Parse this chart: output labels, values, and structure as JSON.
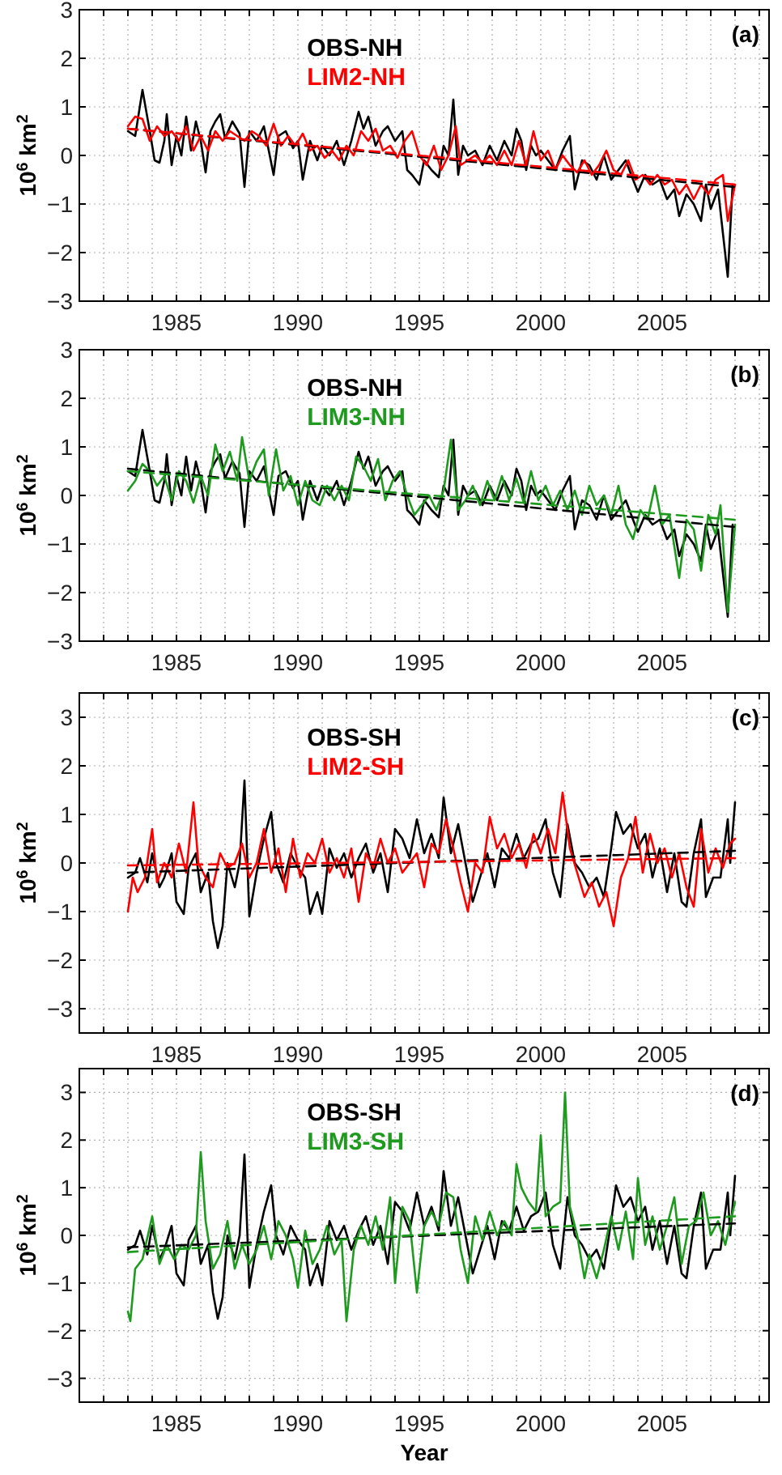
{
  "chart_data": [
    {
      "type": "line",
      "ylabel": "10$^{6}$ km$^{2}$",
      "annotations": [
        "(a)"
      ],
      "xlim": [
        1981,
        2009.4
      ],
      "ylim": [
        -3,
        3
      ],
      "yticks": [
        -3,
        -2,
        -1,
        0,
        1,
        2,
        3
      ],
      "grid": true,
      "legend": "top",
      "xticks": [
        {
          "value": 1981,
          "label": null
        },
        {
          "value": 1982,
          "label": null
        },
        {
          "value": 1983,
          "label": null
        },
        {
          "value": 1984,
          "label": null
        },
        1985,
        {
          "value": 1986,
          "label": null
        },
        {
          "value": 1987,
          "label": null
        },
        {
          "value": 1988,
          "label": null
        },
        {
          "value": 1989,
          "label": null
        },
        1990,
        {
          "value": 1991,
          "label": null
        },
        {
          "value": 1992,
          "label": null
        },
        {
          "value": 1993,
          "label": null
        },
        {
          "value": 1994,
          "label": null
        },
        1995,
        {
          "value": 1996,
          "label": null
        },
        {
          "value": 1997,
          "label": null
        },
        {
          "value": 1998,
          "label": null
        },
        {
          "value": 1999,
          "label": null
        },
        2000,
        {
          "value": 2001,
          "label": null
        },
        {
          "value": 2002,
          "label": null
        },
        {
          "value": 2003,
          "label": null
        },
        {
          "value": 2004,
          "label": null
        },
        2005,
        {
          "value": 2006,
          "label": null
        },
        {
          "value": 2007,
          "label": null
        },
        {
          "value": 2008,
          "label": null
        },
        {
          "value": 2009,
          "label": null
        }
      ],
      "series": [
        {
          "name": "OBS-NH",
          "color": "#000000",
          "x": [
            1983.0,
            1983.3,
            1983.6,
            1983.9,
            1984.1,
            1984.3,
            1984.5,
            1984.6,
            1984.8,
            1985.0,
            1985.2,
            1985.4,
            1985.6,
            1985.8,
            1986.0,
            1986.2,
            1986.4,
            1986.6,
            1986.8,
            1987.0,
            1987.3,
            1987.6,
            1987.8,
            1988.0,
            1988.3,
            1988.6,
            1988.8,
            1989.0,
            1989.2,
            1989.5,
            1989.8,
            1990.0,
            1990.2,
            1990.5,
            1990.8,
            1991.0,
            1991.3,
            1991.6,
            1991.9,
            1992.2,
            1992.5,
            1992.7,
            1992.9,
            1993.2,
            1993.5,
            1993.7,
            1994.0,
            1994.3,
            1994.5,
            1994.7,
            1995.0,
            1995.2,
            1995.5,
            1995.8,
            1996.0,
            1996.2,
            1996.4,
            1996.6,
            1996.8,
            1997.0,
            1997.3,
            1997.6,
            1997.9,
            1998.2,
            1998.5,
            1998.8,
            1999.0,
            1999.2,
            1999.4,
            1999.6,
            1999.8,
            2000.0,
            2000.3,
            2000.6,
            2000.9,
            2001.2,
            2001.4,
            2001.7,
            2002.0,
            2002.3,
            2002.6,
            2002.9,
            2003.2,
            2003.5,
            2003.8,
            2004.0,
            2004.3,
            2004.6,
            2004.9,
            2005.2,
            2005.5,
            2005.7,
            2006.0,
            2006.3,
            2006.6,
            2006.8,
            2007.0,
            2007.3,
            2007.5,
            2007.7,
            2007.9
          ],
          "values": [
            0.5,
            0.4,
            1.35,
            0.5,
            -0.1,
            -0.15,
            0.3,
            0.85,
            -0.2,
            0.4,
            0.0,
            0.8,
            0.1,
            0.7,
            0.3,
            -0.35,
            0.5,
            0.7,
            0.85,
            0.35,
            0.7,
            0.45,
            -0.65,
            0.5,
            0.3,
            0.6,
            0.1,
            -0.4,
            0.4,
            0.5,
            0.15,
            0.3,
            -0.5,
            0.3,
            -0.1,
            0.2,
            0.0,
            0.3,
            -0.2,
            0.3,
            0.9,
            0.55,
            0.8,
            0.2,
            0.5,
            0.6,
            0.3,
            0.5,
            -0.3,
            -0.4,
            -0.6,
            -0.1,
            -0.3,
            -0.45,
            0.2,
            0.0,
            1.15,
            -0.4,
            0.2,
            0.0,
            0.1,
            -0.2,
            0.2,
            -0.1,
            0.3,
            0.0,
            0.55,
            0.3,
            -0.3,
            0.2,
            0.0,
            0.1,
            -0.1,
            -0.3,
            0.1,
            0.4,
            -0.7,
            -0.1,
            -0.2,
            -0.5,
            0.0,
            -0.5,
            -0.3,
            -0.1,
            -0.5,
            -0.75,
            -0.4,
            -0.6,
            -0.5,
            -0.9,
            -0.7,
            -1.25,
            -0.8,
            -1.0,
            -1.35,
            -0.6,
            -1.1,
            -0.7,
            -1.6,
            -2.5,
            -0.6
          ]
        },
        {
          "name": "LIM2-NH",
          "color": "#ff0000",
          "x": [
            1983.0,
            1983.3,
            1983.6,
            1983.9,
            1984.2,
            1984.5,
            1984.8,
            1985.1,
            1985.4,
            1985.7,
            1986.0,
            1986.3,
            1986.6,
            1986.9,
            1987.2,
            1987.5,
            1987.8,
            1988.1,
            1988.4,
            1988.7,
            1989.0,
            1989.3,
            1989.6,
            1989.9,
            1990.2,
            1990.5,
            1990.8,
            1991.1,
            1991.4,
            1991.7,
            1992.0,
            1992.3,
            1992.6,
            1992.9,
            1993.2,
            1993.5,
            1993.8,
            1994.1,
            1994.4,
            1994.7,
            1995.0,
            1995.3,
            1995.6,
            1995.9,
            1996.2,
            1996.5,
            1996.7,
            1997.0,
            1997.3,
            1997.6,
            1997.9,
            1998.2,
            1998.5,
            1998.8,
            1999.1,
            1999.4,
            1999.7,
            2000.0,
            2000.3,
            2000.6,
            2000.9,
            2001.2,
            2001.5,
            2001.8,
            2002.1,
            2002.4,
            2002.7,
            2003.0,
            2003.3,
            2003.6,
            2003.9,
            2004.2,
            2004.5,
            2004.8,
            2005.1,
            2005.4,
            2005.7,
            2006.0,
            2006.3,
            2006.6,
            2006.9,
            2007.2,
            2007.5,
            2007.7,
            2008.0
          ],
          "values": [
            0.6,
            0.8,
            0.75,
            0.3,
            0.6,
            0.4,
            0.5,
            0.3,
            0.6,
            0.1,
            0.4,
            0.1,
            0.5,
            0.3,
            0.5,
            0.4,
            0.3,
            0.5,
            0.4,
            0.2,
            0.65,
            0.2,
            0.4,
            0.2,
            0.45,
            0.1,
            0.2,
            -0.05,
            0.1,
            -0.1,
            0.2,
            0.0,
            0.5,
            0.3,
            0.55,
            0.1,
            0.2,
            -0.05,
            0.3,
            0.5,
            0.0,
            -0.2,
            0.2,
            -0.3,
            0.0,
            0.6,
            -0.2,
            -0.1,
            0.0,
            -0.15,
            0.0,
            -0.2,
            0.1,
            -0.2,
            0.3,
            -0.2,
            0.5,
            -0.1,
            0.1,
            -0.3,
            0.0,
            -0.2,
            -0.35,
            -0.1,
            -0.4,
            -0.2,
            0.1,
            -0.3,
            -0.4,
            -0.1,
            -0.5,
            -0.4,
            -0.6,
            -0.4,
            -0.6,
            -0.5,
            -0.8,
            -0.6,
            -0.9,
            -0.6,
            -0.8,
            -0.5,
            -0.4,
            -1.35,
            -0.6
          ]
        },
        {
          "type": "line",
          "color": "#000000",
          "line_style": "dashed",
          "x": [
            1983,
            2008
          ],
          "values": [
            0.55,
            -0.65
          ]
        },
        {
          "type": "line",
          "color": "#ff0000",
          "line_style": "dashed",
          "x": [
            1983,
            2008
          ],
          "values": [
            0.55,
            -0.6
          ]
        }
      ]
    },
    {
      "type": "line",
      "ylabel": "10$^{6}$ km$^{2}$",
      "annotations": [
        "(b)"
      ],
      "xlim": [
        1981,
        2009.4
      ],
      "ylim": [
        -3,
        3
      ],
      "yticks": [
        -3,
        -2,
        -1,
        0,
        1,
        2,
        3
      ],
      "grid": true,
      "legend": "top",
      "xticks": [
        {
          "value": 1981,
          "label": null
        },
        {
          "value": 1982,
          "label": null
        },
        {
          "value": 1983,
          "label": null
        },
        {
          "value": 1984,
          "label": null
        },
        1985,
        {
          "value": 1986,
          "label": null
        },
        {
          "value": 1987,
          "label": null
        },
        {
          "value": 1988,
          "label": null
        },
        {
          "value": 1989,
          "label": null
        },
        1990,
        {
          "value": 1991,
          "label": null
        },
        {
          "value": 1992,
          "label": null
        },
        {
          "value": 1993,
          "label": null
        },
        {
          "value": 1994,
          "label": null
        },
        1995,
        {
          "value": 1996,
          "label": null
        },
        {
          "value": 1997,
          "label": null
        },
        {
          "value": 1998,
          "label": null
        },
        {
          "value": 1999,
          "label": null
        },
        2000,
        {
          "value": 2001,
          "label": null
        },
        {
          "value": 2002,
          "label": null
        },
        {
          "value": 2003,
          "label": null
        },
        {
          "value": 2004,
          "label": null
        },
        2005,
        {
          "value": 2006,
          "label": null
        },
        {
          "value": 2007,
          "label": null
        },
        {
          "value": 2008,
          "label": null
        },
        {
          "value": 2009,
          "label": null
        }
      ],
      "series": [
        {
          "name": "OBS-NH",
          "color": "#000000",
          "x": [
            1983.0,
            1983.3,
            1983.6,
            1983.9,
            1984.1,
            1984.3,
            1984.5,
            1984.6,
            1984.8,
            1985.0,
            1985.2,
            1985.4,
            1985.6,
            1985.8,
            1986.0,
            1986.2,
            1986.4,
            1986.6,
            1986.8,
            1987.0,
            1987.3,
            1987.6,
            1987.8,
            1988.0,
            1988.3,
            1988.6,
            1988.8,
            1989.0,
            1989.2,
            1989.5,
            1989.8,
            1990.0,
            1990.2,
            1990.5,
            1990.8,
            1991.0,
            1991.3,
            1991.6,
            1991.9,
            1992.2,
            1992.5,
            1992.7,
            1992.9,
            1993.2,
            1993.5,
            1993.7,
            1994.0,
            1994.3,
            1994.5,
            1994.7,
            1995.0,
            1995.2,
            1995.5,
            1995.8,
            1996.0,
            1996.2,
            1996.4,
            1996.6,
            1996.8,
            1997.0,
            1997.3,
            1997.6,
            1997.9,
            1998.2,
            1998.5,
            1998.8,
            1999.0,
            1999.2,
            1999.4,
            1999.6,
            1999.8,
            2000.0,
            2000.3,
            2000.6,
            2000.9,
            2001.2,
            2001.4,
            2001.7,
            2002.0,
            2002.3,
            2002.6,
            2002.9,
            2003.2,
            2003.5,
            2003.8,
            2004.0,
            2004.3,
            2004.6,
            2004.9,
            2005.2,
            2005.5,
            2005.7,
            2006.0,
            2006.3,
            2006.6,
            2006.8,
            2007.0,
            2007.3,
            2007.5,
            2007.7,
            2007.9
          ],
          "values": [
            0.5,
            0.4,
            1.35,
            0.5,
            -0.1,
            -0.15,
            0.3,
            0.85,
            -0.2,
            0.4,
            0.0,
            0.8,
            0.1,
            0.7,
            0.3,
            -0.35,
            0.5,
            0.7,
            0.85,
            0.35,
            0.7,
            0.45,
            -0.65,
            0.5,
            0.3,
            0.6,
            0.1,
            -0.4,
            0.4,
            0.5,
            0.15,
            0.3,
            -0.5,
            0.3,
            -0.1,
            0.2,
            0.0,
            0.3,
            -0.2,
            0.3,
            0.9,
            0.55,
            0.8,
            0.2,
            0.5,
            0.6,
            0.3,
            0.5,
            -0.3,
            -0.4,
            -0.6,
            -0.1,
            -0.3,
            -0.45,
            0.2,
            0.0,
            1.15,
            -0.4,
            0.2,
            0.0,
            0.1,
            -0.2,
            0.2,
            -0.1,
            0.3,
            0.0,
            0.55,
            0.3,
            -0.3,
            0.2,
            0.0,
            0.1,
            -0.1,
            -0.3,
            0.1,
            0.4,
            -0.7,
            -0.1,
            -0.2,
            -0.5,
            0.0,
            -0.5,
            -0.3,
            -0.1,
            -0.5,
            -0.75,
            -0.4,
            -0.6,
            -0.5,
            -0.9,
            -0.7,
            -1.25,
            -0.8,
            -1.0,
            -1.35,
            -0.6,
            -1.1,
            -0.7,
            -1.6,
            -2.5,
            -0.6
          ]
        },
        {
          "name": "LIM3-NH",
          "color": "#1e9b1e",
          "x": [
            1983.0,
            1983.3,
            1983.6,
            1983.9,
            1984.2,
            1984.5,
            1984.8,
            1985.1,
            1985.4,
            1985.7,
            1986.0,
            1986.3,
            1986.6,
            1986.9,
            1987.2,
            1987.5,
            1987.7,
            1988.0,
            1988.3,
            1988.6,
            1988.8,
            1989.1,
            1989.4,
            1989.7,
            1990.0,
            1990.3,
            1990.6,
            1990.9,
            1991.2,
            1991.5,
            1991.8,
            1992.1,
            1992.4,
            1992.7,
            1993.0,
            1993.3,
            1993.6,
            1993.9,
            1994.2,
            1994.5,
            1994.8,
            1995.1,
            1995.4,
            1995.7,
            1996.0,
            1996.3,
            1996.6,
            1996.9,
            1997.2,
            1997.5,
            1997.8,
            1998.1,
            1998.4,
            1998.7,
            1999.0,
            1999.3,
            1999.6,
            1999.9,
            2000.2,
            2000.5,
            2000.8,
            2001.1,
            2001.4,
            2001.7,
            2002.0,
            2002.3,
            2002.6,
            2002.9,
            2003.2,
            2003.5,
            2003.8,
            2004.1,
            2004.4,
            2004.7,
            2005.0,
            2005.3,
            2005.7,
            2006.0,
            2006.3,
            2006.6,
            2006.9,
            2007.2,
            2007.4,
            2007.7,
            2008.0
          ],
          "values": [
            0.1,
            0.3,
            0.65,
            0.5,
            0.2,
            0.4,
            -0.1,
            0.5,
            0.3,
            -0.15,
            0.4,
            0.0,
            1.05,
            0.5,
            0.9,
            0.3,
            1.2,
            0.3,
            0.7,
            0.95,
            0.0,
            0.95,
            0.1,
            0.4,
            -0.2,
            0.3,
            -0.1,
            -0.2,
            0.2,
            -0.1,
            0.2,
            -0.1,
            0.8,
            0.6,
            0.3,
            0.75,
            -0.1,
            0.3,
            0.5,
            0.0,
            -0.4,
            -0.2,
            0.0,
            -0.3,
            0.1,
            1.15,
            -0.3,
            -0.1,
            0.2,
            -0.2,
            0.3,
            -0.1,
            0.4,
            -0.1,
            0.35,
            -0.15,
            0.5,
            -0.1,
            0.2,
            -0.2,
            0.1,
            -0.3,
            0.1,
            -0.4,
            0.2,
            -0.2,
            0.0,
            -0.4,
            0.2,
            -0.6,
            -0.9,
            -0.3,
            -0.5,
            0.2,
            -0.6,
            -0.4,
            -1.7,
            -0.5,
            -0.7,
            -1.55,
            -0.4,
            -0.8,
            -0.2,
            -2.4,
            -0.6
          ]
        },
        {
          "type": "line",
          "color": "#000000",
          "line_style": "dashed",
          "x": [
            1983,
            2008
          ],
          "values": [
            0.55,
            -0.65
          ]
        },
        {
          "type": "line",
          "color": "#1e9b1e",
          "line_style": "dashed",
          "x": [
            1983,
            2008
          ],
          "values": [
            0.5,
            -0.5
          ]
        }
      ]
    },
    {
      "type": "line",
      "ylabel": "10$^{6}$ km$^{2}$",
      "annotations": [
        "(c)"
      ],
      "xlim": [
        1981,
        2009.4
      ],
      "ylim": [
        -3.5,
        3.5
      ],
      "yticks": [
        -3,
        -2,
        -1,
        0,
        1,
        2,
        3
      ],
      "grid": true,
      "legend": "top",
      "xticks": [
        {
          "value": 1981,
          "label": null
        },
        {
          "value": 1982,
          "label": null
        },
        {
          "value": 1983,
          "label": null
        },
        {
          "value": 1984,
          "label": null
        },
        1985,
        {
          "value": 1986,
          "label": null
        },
        {
          "value": 1987,
          "label": null
        },
        {
          "value": 1988,
          "label": null
        },
        {
          "value": 1989,
          "label": null
        },
        1990,
        {
          "value": 1991,
          "label": null
        },
        {
          "value": 1992,
          "label": null
        },
        {
          "value": 1993,
          "label": null
        },
        {
          "value": 1994,
          "label": null
        },
        1995,
        {
          "value": 1996,
          "label": null
        },
        {
          "value": 1997,
          "label": null
        },
        {
          "value": 1998,
          "label": null
        },
        {
          "value": 1999,
          "label": null
        },
        2000,
        {
          "value": 2001,
          "label": null
        },
        {
          "value": 2002,
          "label": null
        },
        {
          "value": 2003,
          "label": null
        },
        {
          "value": 2004,
          "label": null
        },
        2005,
        {
          "value": 2006,
          "label": null
        },
        {
          "value": 2007,
          "label": null
        },
        {
          "value": 2008,
          "label": null
        },
        {
          "value": 2009,
          "label": null
        }
      ],
      "series": [
        {
          "name": "OBS-SH",
          "color": "#000000",
          "x": [
            1983.0,
            1983.3,
            1983.5,
            1983.8,
            1984.0,
            1984.3,
            1984.5,
            1984.8,
            1985.0,
            1985.3,
            1985.5,
            1985.8,
            1986.0,
            1986.3,
            1986.5,
            1986.7,
            1986.9,
            1987.1,
            1987.4,
            1987.6,
            1987.8,
            1988.0,
            1988.3,
            1988.6,
            1988.9,
            1989.1,
            1989.4,
            1989.7,
            1990.0,
            1990.3,
            1990.5,
            1990.8,
            1991.0,
            1991.3,
            1991.6,
            1991.9,
            1992.2,
            1992.5,
            1992.8,
            1993.1,
            1993.4,
            1993.7,
            1994.0,
            1994.3,
            1994.6,
            1994.9,
            1995.2,
            1995.5,
            1995.8,
            1996.0,
            1996.3,
            1996.6,
            1996.9,
            1997.2,
            1997.5,
            1997.8,
            1998.1,
            1998.4,
            1998.7,
            1999.0,
            1999.3,
            1999.6,
            1999.9,
            2000.2,
            2000.5,
            2000.8,
            2001.1,
            2001.4,
            2001.7,
            2002.0,
            2002.3,
            2002.6,
            2002.9,
            2003.1,
            2003.4,
            2003.7,
            2004.0,
            2004.3,
            2004.6,
            2004.9,
            2005.2,
            2005.5,
            2005.8,
            2006.0,
            2006.3,
            2006.6,
            2006.8,
            2007.1,
            2007.4,
            2007.7,
            2007.8,
            2008.0
          ],
          "values": [
            -0.3,
            -0.2,
            0.1,
            -0.4,
            0.2,
            -0.5,
            -0.3,
            0.2,
            -0.8,
            -1.05,
            -0.1,
            0.2,
            -0.6,
            -0.2,
            -1.2,
            -1.75,
            -1.3,
            0.0,
            -0.5,
            0.0,
            1.7,
            -1.1,
            -0.2,
            0.5,
            1.05,
            0.0,
            -0.4,
            0.2,
            -0.1,
            -0.3,
            -1.05,
            -0.6,
            -1.05,
            0.3,
            -0.1,
            0.2,
            -0.3,
            0.1,
            0.4,
            -0.2,
            0.2,
            -0.6,
            0.7,
            0.5,
            0.1,
            0.9,
            0.2,
            0.6,
            0.1,
            1.35,
            0.2,
            0.8,
            0.0,
            -0.8,
            -0.3,
            0.2,
            -0.5,
            0.3,
            0.1,
            0.6,
            0.1,
            0.4,
            0.5,
            0.9,
            -0.2,
            -0.7,
            0.8,
            0.0,
            -0.2,
            -0.5,
            -0.3,
            -0.7,
            0.3,
            1.05,
            0.6,
            0.8,
            0.3,
            0.6,
            -0.3,
            0.3,
            -0.6,
            0.2,
            -0.8,
            -0.9,
            0.2,
            0.9,
            -0.7,
            -0.3,
            -0.3,
            0.9,
            0.0,
            1.25
          ]
        },
        {
          "name": "LIM2-SH",
          "color": "#ff0000",
          "x": [
            1983.0,
            1983.2,
            1983.4,
            1983.7,
            1984.0,
            1984.2,
            1984.5,
            1984.8,
            1985.1,
            1985.4,
            1985.7,
            1985.9,
            1986.2,
            1986.5,
            1986.8,
            1987.1,
            1987.4,
            1987.7,
            1988.0,
            1988.3,
            1988.6,
            1988.9,
            1989.2,
            1989.5,
            1989.8,
            1990.1,
            1990.4,
            1990.7,
            1991.0,
            1991.3,
            1991.6,
            1991.9,
            1992.2,
            1992.5,
            1992.8,
            1993.1,
            1993.4,
            1993.7,
            1994.0,
            1994.3,
            1994.6,
            1994.9,
            1995.2,
            1995.5,
            1995.8,
            1996.1,
            1996.4,
            1996.7,
            1997.0,
            1997.3,
            1997.6,
            1997.9,
            1998.2,
            1998.5,
            1998.8,
            1999.1,
            1999.4,
            1999.7,
            2000.0,
            2000.3,
            2000.6,
            2000.9,
            2001.2,
            2001.5,
            2001.8,
            2002.1,
            2002.4,
            2002.7,
            2003.0,
            2003.3,
            2003.6,
            2003.9,
            2004.2,
            2004.5,
            2004.8,
            2005.1,
            2005.4,
            2005.7,
            2006.0,
            2006.3,
            2006.6,
            2006.9,
            2007.2,
            2007.5,
            2007.8,
            2008.0
          ],
          "values": [
            -1.0,
            -0.3,
            -0.6,
            -0.3,
            0.7,
            -0.4,
            0.0,
            -0.3,
            0.4,
            -0.2,
            1.25,
            0.0,
            -0.3,
            -0.5,
            0.2,
            -0.1,
            0.0,
            0.4,
            -0.3,
            0.0,
            0.7,
            -0.2,
            0.3,
            -0.6,
            0.5,
            -0.3,
            0.2,
            0.0,
            0.5,
            -0.2,
            0.1,
            -0.3,
            0.3,
            -0.8,
            0.2,
            -0.1,
            0.5,
            0.0,
            0.3,
            -0.2,
            0.0,
            0.2,
            -0.5,
            0.4,
            0.2,
            0.9,
            0.3,
            -0.4,
            -1.0,
            0.0,
            -0.2,
            0.95,
            0.3,
            0.6,
            0.1,
            0.4,
            -0.1,
            0.6,
            0.2,
            0.7,
            0.2,
            1.45,
            0.3,
            -0.2,
            -0.7,
            -0.4,
            -0.9,
            -0.6,
            -1.3,
            -0.3,
            0.1,
            0.95,
            -0.2,
            0.6,
            0.0,
            0.3,
            -0.3,
            0.2,
            -0.5,
            -0.9,
            0.7,
            -0.2,
            0.3,
            -0.1,
            0.4,
            0.5
          ]
        },
        {
          "type": "line",
          "color": "#000000",
          "line_style": "dashed",
          "x": [
            1983,
            2008
          ],
          "values": [
            -0.2,
            0.25
          ]
        },
        {
          "type": "line",
          "color": "#ff0000",
          "line_style": "dashed",
          "x": [
            1983,
            2008
          ],
          "values": [
            -0.05,
            0.1
          ]
        }
      ]
    },
    {
      "type": "line",
      "xlabel": "Year",
      "ylabel": "10$^{6}$ km$^{2}$",
      "annotations": [
        "(d)"
      ],
      "xlim": [
        1981,
        2009.4
      ],
      "ylim": [
        -3.5,
        3.5
      ],
      "yticks": [
        -3,
        -2,
        -1,
        0,
        1,
        2,
        3
      ],
      "grid": true,
      "legend": "top",
      "xticks": [
        {
          "value": 1981,
          "label": null
        },
        {
          "value": 1982,
          "label": null
        },
        {
          "value": 1983,
          "label": null
        },
        {
          "value": 1984,
          "label": null
        },
        1985,
        {
          "value": 1986,
          "label": null
        },
        {
          "value": 1987,
          "label": null
        },
        {
          "value": 1988,
          "label": null
        },
        {
          "value": 1989,
          "label": null
        },
        1990,
        {
          "value": 1991,
          "label": null
        },
        {
          "value": 1992,
          "label": null
        },
        {
          "value": 1993,
          "label": null
        },
        {
          "value": 1994,
          "label": null
        },
        1995,
        {
          "value": 1996,
          "label": null
        },
        {
          "value": 1997,
          "label": null
        },
        {
          "value": 1998,
          "label": null
        },
        {
          "value": 1999,
          "label": null
        },
        2000,
        {
          "value": 2001,
          "label": null
        },
        {
          "value": 2002,
          "label": null
        },
        {
          "value": 2003,
          "label": null
        },
        {
          "value": 2004,
          "label": null
        },
        2005,
        {
          "value": 2006,
          "label": null
        },
        {
          "value": 2007,
          "label": null
        },
        {
          "value": 2008,
          "label": null
        },
        {
          "value": 2009,
          "label": null
        }
      ],
      "series": [
        {
          "name": "OBS-SH",
          "color": "#000000",
          "x": [
            1983.0,
            1983.3,
            1983.5,
            1983.8,
            1984.0,
            1984.3,
            1984.5,
            1984.8,
            1985.0,
            1985.3,
            1985.5,
            1985.8,
            1986.0,
            1986.3,
            1986.5,
            1986.7,
            1986.9,
            1987.1,
            1987.4,
            1987.6,
            1987.8,
            1988.0,
            1988.3,
            1988.6,
            1988.9,
            1989.1,
            1989.4,
            1989.7,
            1990.0,
            1990.3,
            1990.5,
            1990.8,
            1991.0,
            1991.3,
            1991.6,
            1991.9,
            1992.2,
            1992.5,
            1992.8,
            1993.1,
            1993.4,
            1993.7,
            1994.0,
            1994.3,
            1994.6,
            1994.9,
            1995.2,
            1995.5,
            1995.8,
            1996.0,
            1996.3,
            1996.6,
            1996.9,
            1997.2,
            1997.5,
            1997.8,
            1998.1,
            1998.4,
            1998.7,
            1999.0,
            1999.3,
            1999.6,
            1999.9,
            2000.2,
            2000.5,
            2000.8,
            2001.1,
            2001.4,
            2001.7,
            2002.0,
            2002.3,
            2002.6,
            2002.9,
            2003.1,
            2003.4,
            2003.7,
            2004.0,
            2004.3,
            2004.6,
            2004.9,
            2005.2,
            2005.5,
            2005.8,
            2006.0,
            2006.3,
            2006.6,
            2006.8,
            2007.1,
            2007.4,
            2007.7,
            2007.8,
            2008.0
          ],
          "values": [
            -0.3,
            -0.2,
            0.1,
            -0.4,
            0.2,
            -0.5,
            -0.3,
            0.2,
            -0.8,
            -1.05,
            -0.1,
            0.2,
            -0.6,
            -0.2,
            -1.2,
            -1.75,
            -1.3,
            0.0,
            -0.5,
            0.0,
            1.7,
            -1.1,
            -0.2,
            0.5,
            1.05,
            0.0,
            -0.4,
            0.2,
            -0.1,
            -0.3,
            -1.05,
            -0.6,
            -1.05,
            0.3,
            -0.1,
            0.2,
            -0.3,
            0.1,
            0.4,
            -0.2,
            0.2,
            -0.6,
            0.7,
            0.5,
            0.1,
            0.9,
            0.2,
            0.6,
            0.1,
            1.35,
            0.2,
            0.8,
            0.0,
            -0.8,
            -0.3,
            0.2,
            -0.5,
            0.3,
            0.1,
            0.6,
            0.1,
            0.4,
            0.5,
            0.9,
            -0.2,
            -0.7,
            0.8,
            0.0,
            -0.2,
            -0.5,
            -0.3,
            -0.7,
            0.3,
            1.05,
            0.6,
            0.8,
            0.3,
            0.6,
            -0.3,
            0.3,
            -0.6,
            0.2,
            -0.8,
            -0.9,
            0.2,
            0.9,
            -0.7,
            -0.3,
            -0.3,
            0.9,
            0.0,
            1.25
          ]
        },
        {
          "name": "LIM3-SH",
          "color": "#1e9b1e",
          "x": [
            1983.0,
            1983.1,
            1983.3,
            1983.6,
            1984.0,
            1984.3,
            1984.6,
            1984.9,
            1985.2,
            1985.5,
            1985.8,
            1986.0,
            1986.2,
            1986.5,
            1986.8,
            1987.1,
            1987.4,
            1987.7,
            1988.0,
            1988.3,
            1988.6,
            1988.9,
            1989.2,
            1989.5,
            1989.8,
            1990.0,
            1990.3,
            1990.6,
            1990.9,
            1991.2,
            1991.5,
            1991.8,
            1992.0,
            1992.3,
            1992.6,
            1992.9,
            1993.2,
            1993.5,
            1993.8,
            1994.0,
            1994.3,
            1994.6,
            1994.9,
            1995.2,
            1995.5,
            1995.8,
            1996.1,
            1996.4,
            1996.7,
            1997.0,
            1997.3,
            1997.6,
            1997.9,
            1998.2,
            1998.5,
            1998.8,
            1999.0,
            1999.2,
            1999.5,
            1999.8,
            2000.0,
            2000.2,
            2000.5,
            2000.8,
            2001.0,
            2001.2,
            2001.5,
            2001.8,
            2002.0,
            2002.3,
            2002.6,
            2002.9,
            2003.2,
            2003.5,
            2003.8,
            2004.0,
            2004.3,
            2004.6,
            2004.9,
            2005.2,
            2005.5,
            2005.8,
            2006.1,
            2006.4,
            2006.7,
            2007.0,
            2007.3,
            2007.6,
            2008.0
          ],
          "values": [
            -1.6,
            -1.8,
            -0.7,
            -0.5,
            0.4,
            -0.6,
            -0.2,
            -0.5,
            -0.2,
            -0.3,
            0.0,
            1.75,
            0.3,
            -0.7,
            -0.4,
            0.3,
            -0.7,
            -0.2,
            -0.6,
            -0.3,
            0.2,
            -0.5,
            0.3,
            0.0,
            -0.5,
            -1.1,
            0.1,
            -0.6,
            -0.3,
            0.2,
            -0.4,
            -0.1,
            -1.8,
            -0.3,
            0.2,
            -0.2,
            0.4,
            -0.3,
            0.8,
            -1.0,
            0.6,
            0.3,
            -1.2,
            0.2,
            0.5,
            0.2,
            0.9,
            0.8,
            -0.3,
            -1.0,
            0.4,
            -0.1,
            0.5,
            0.0,
            0.3,
            0.0,
            1.5,
            1.0,
            0.7,
            0.5,
            2.1,
            0.4,
            0.6,
            0.7,
            3.0,
            0.6,
            0.0,
            -0.9,
            -0.4,
            -0.9,
            -0.3,
            0.4,
            -0.3,
            0.5,
            -0.5,
            1.2,
            -0.2,
            0.4,
            -0.3,
            0.2,
            0.8,
            -0.6,
            0.2,
            0.3,
            0.9,
            0.0,
            0.3,
            -0.2,
            0.7
          ]
        },
        {
          "type": "line",
          "color": "#000000",
          "line_style": "dashed",
          "x": [
            1983,
            2008
          ],
          "values": [
            -0.25,
            0.25
          ]
        },
        {
          "type": "line",
          "color": "#1e9b1e",
          "line_style": "dashed",
          "x": [
            1983,
            2008
          ],
          "values": [
            -0.35,
            0.4
          ]
        }
      ]
    }
  ]
}
